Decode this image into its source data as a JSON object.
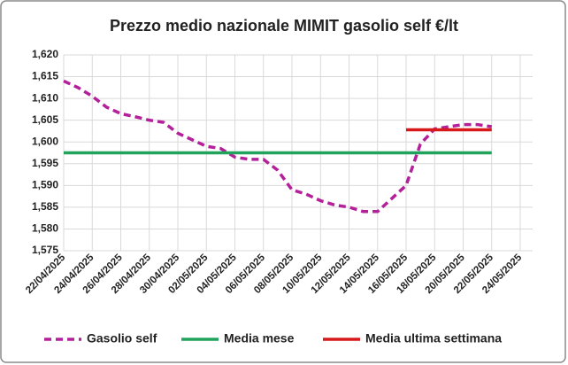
{
  "chart_data": {
    "type": "line",
    "title": "Prezzo medio nazionale MIMIT gasolio self €/lt",
    "categories": [
      "22/04/2025",
      null,
      "24/04/2025",
      null,
      "26/04/2025",
      null,
      "28/04/2025",
      null,
      "30/04/2025",
      null,
      "02/05/2025",
      null,
      "04/05/2025",
      null,
      "06/05/2025",
      null,
      "08/05/2025",
      null,
      "10/05/2025",
      null,
      "12/05/2025",
      null,
      "14/05/2025",
      null,
      "16/05/2025",
      null,
      "18/05/2025",
      null,
      "20/05/2025",
      null,
      "22/05/2025",
      null,
      "24/05/2025"
    ],
    "series": [
      {
        "name": "Gasolio self",
        "color": "#b3209a",
        "line_style": "dashed",
        "values": [
          1.614,
          1.6125,
          1.6105,
          1.608,
          1.6065,
          1.6058,
          1.605,
          1.6045,
          1.602,
          1.6005,
          1.599,
          1.5985,
          1.5965,
          1.596,
          1.596,
          1.5935,
          1.589,
          1.588,
          1.5865,
          1.5855,
          1.585,
          1.584,
          1.584,
          1.587,
          1.59,
          1.5995,
          1.603,
          1.6035,
          1.604,
          1.604,
          1.6035,
          null,
          null
        ]
      },
      {
        "name": "Media mese",
        "color": "#21a35c",
        "line_style": "solid",
        "values": [
          1.5975,
          1.5975,
          1.5975,
          1.5975,
          1.5975,
          1.5975,
          1.5975,
          1.5975,
          1.5975,
          1.5975,
          1.5975,
          1.5975,
          1.5975,
          1.5975,
          1.5975,
          1.5975,
          1.5975,
          1.5975,
          1.5975,
          1.5975,
          1.5975,
          1.5975,
          1.5975,
          1.5975,
          1.5975,
          1.5975,
          1.5975,
          1.5975,
          1.5975,
          1.5975,
          1.5975,
          null,
          null
        ]
      },
      {
        "name": "Media ultima settimana",
        "color": "#d7191c",
        "line_style": "solid",
        "values": [
          null,
          null,
          null,
          null,
          null,
          null,
          null,
          null,
          null,
          null,
          null,
          null,
          null,
          null,
          null,
          null,
          null,
          null,
          null,
          null,
          null,
          null,
          null,
          null,
          1.6028,
          1.6028,
          1.6028,
          1.6028,
          1.6028,
          1.6028,
          1.6028,
          null,
          null
        ]
      }
    ],
    "ylim": [
      1.575,
      1.62
    ],
    "yticks": [
      {
        "value": 1.575,
        "label": "1,575"
      },
      {
        "value": 1.58,
        "label": "1,580"
      },
      {
        "value": 1.585,
        "label": "1,585"
      },
      {
        "value": 1.59,
        "label": "1,590"
      },
      {
        "value": 1.595,
        "label": "1,595"
      },
      {
        "value": 1.6,
        "label": "1,600"
      },
      {
        "value": 1.605,
        "label": "1,605"
      },
      {
        "value": 1.61,
        "label": "1,610"
      },
      {
        "value": 1.615,
        "label": "1,615"
      },
      {
        "value": 1.62,
        "label": "1,620"
      }
    ],
    "grid": true,
    "legend": "bottom"
  }
}
